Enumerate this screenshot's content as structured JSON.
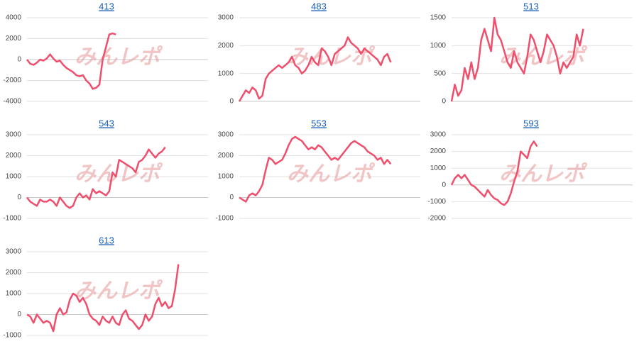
{
  "watermark": "みんレポ",
  "chart_data": [
    {
      "type": "line",
      "title": "413",
      "color": "#ef4f6c",
      "ylim": [
        -4000,
        4000
      ],
      "yticks": [
        -4000,
        -2000,
        0,
        2000,
        4000
      ],
      "grid": true,
      "values": [
        0,
        -400,
        -500,
        -300,
        0,
        -100,
        100,
        500,
        100,
        -200,
        -100,
        -500,
        -800,
        -1000,
        -1200,
        -1500,
        -1600,
        -1500,
        -2000,
        -2300,
        -2800,
        -2700,
        -2400,
        0,
        1200,
        2400,
        2500,
        2400
      ]
    },
    {
      "type": "line",
      "title": "483",
      "color": "#ef4f6c",
      "ylim": [
        0,
        3000
      ],
      "yticks": [
        0,
        1000,
        2000,
        3000
      ],
      "grid": true,
      "values": [
        0,
        200,
        400,
        300,
        500,
        400,
        100,
        200,
        800,
        1000,
        1100,
        1200,
        1300,
        1200,
        1300,
        1400,
        1600,
        1300,
        1200,
        1000,
        1100,
        1300,
        1600,
        1400,
        1300,
        1900,
        1800,
        1600,
        1300,
        1700,
        1800,
        1900,
        2000,
        2300,
        2100,
        2000,
        1900,
        1700,
        1900,
        1800,
        1700,
        1600,
        1500,
        1300,
        1600,
        1700,
        1400
      ]
    },
    {
      "type": "line",
      "title": "513",
      "color": "#ef4f6c",
      "ylim": [
        0,
        1500
      ],
      "yticks": [
        0,
        500,
        1000,
        1500
      ],
      "grid": true,
      "values": [
        0,
        300,
        100,
        200,
        600,
        400,
        700,
        400,
        600,
        1100,
        1300,
        1100,
        900,
        1500,
        1200,
        1100,
        900,
        700,
        600,
        900,
        700,
        600,
        500,
        800,
        1200,
        1100,
        900,
        700,
        900,
        1200,
        1100,
        1000,
        800,
        500,
        700,
        600,
        700,
        800,
        1200,
        1000,
        1300
      ]
    },
    {
      "type": "line",
      "title": "543",
      "color": "#ef4f6c",
      "ylim": [
        -1000,
        3000
      ],
      "yticks": [
        -1000,
        0,
        1000,
        2000,
        3000
      ],
      "grid": true,
      "values": [
        0,
        -200,
        -300,
        -400,
        -100,
        -200,
        -200,
        -100,
        -200,
        -400,
        0,
        -200,
        -400,
        -500,
        -400,
        0,
        200,
        0,
        100,
        -100,
        400,
        200,
        300,
        200,
        100,
        300,
        1200,
        1000,
        1800,
        1700,
        1600,
        1500,
        1400,
        1200,
        1700,
        1800,
        2000,
        2300,
        2100,
        1900,
        2100,
        2200,
        2400
      ]
    },
    {
      "type": "line",
      "title": "553",
      "color": "#ef4f6c",
      "ylim": [
        -1000,
        3000
      ],
      "yticks": [
        -1000,
        0,
        1000,
        2000,
        3000
      ],
      "grid": true,
      "values": [
        0,
        -100,
        -200,
        100,
        200,
        100,
        300,
        600,
        1300,
        1900,
        1800,
        1600,
        1700,
        1800,
        2100,
        2500,
        2800,
        2900,
        2800,
        2700,
        2500,
        2300,
        2400,
        2300,
        2500,
        2400,
        2200,
        2000,
        1800,
        1900,
        1800,
        2000,
        2200,
        2400,
        2600,
        2700,
        2600,
        2500,
        2400,
        2200,
        2100,
        2000,
        1800,
        1900,
        1600,
        1800,
        1600
      ]
    },
    {
      "type": "line",
      "title": "593",
      "color": "#ef4f6c",
      "ylim": [
        -2000,
        3000
      ],
      "yticks": [
        -2000,
        -1000,
        0,
        1000,
        2000,
        3000
      ],
      "grid": true,
      "values": [
        0,
        400,
        600,
        400,
        600,
        300,
        0,
        -100,
        -300,
        -500,
        -700,
        -300,
        -600,
        -800,
        -900,
        -1100,
        -1200,
        -1000,
        -500,
        200,
        800,
        2000,
        1800,
        1600,
        2300,
        2600,
        2300
      ]
    },
    {
      "type": "line",
      "title": "613",
      "color": "#ef4f6c",
      "ylim": [
        -1000,
        3000
      ],
      "yticks": [
        -1000,
        0,
        1000,
        2000,
        3000
      ],
      "grid": true,
      "values": [
        0,
        -100,
        -400,
        0,
        -200,
        -400,
        -300,
        -400,
        -800,
        0,
        300,
        0,
        100,
        700,
        1000,
        900,
        600,
        800,
        500,
        0,
        -200,
        -300,
        -500,
        -100,
        -300,
        -400,
        -100,
        -400,
        -500,
        0,
        200,
        -200,
        -300,
        -500,
        -700,
        -500,
        0,
        -300,
        -100,
        500,
        800,
        400,
        600,
        300,
        400,
        1200,
        2400
      ]
    }
  ]
}
